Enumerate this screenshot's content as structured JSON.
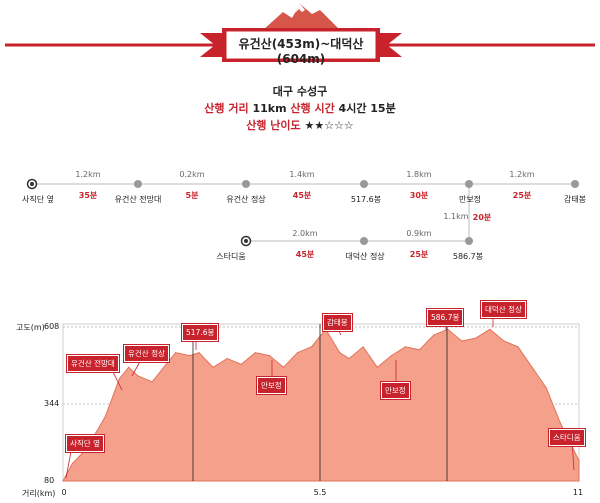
{
  "banner": {
    "title": "유건산(453m)~대덕산(604m)"
  },
  "info": {
    "region": "대구 수성구",
    "distance_label": "산행 거리",
    "distance_value": "11km",
    "time_label": "산행 시간",
    "time_value": "4시간 15분",
    "difficulty_label": "산행 난이도",
    "difficulty_stars": "★★☆☆☆"
  },
  "route": {
    "row1_stops": [
      "사직단 옆",
      "유건산 전망대",
      "유건산 정상",
      "517.6봉",
      "만보정",
      "감태봉"
    ],
    "row1_dists": [
      "1.2km",
      "0.2km",
      "1.4km",
      "1.8km",
      "1.2km"
    ],
    "row1_times": [
      "35분",
      "5분",
      "45분",
      "30분",
      "25분"
    ],
    "vertical_dist": "1.1km",
    "vertical_time": "20분",
    "row2_stops": [
      "스타디움",
      "대덕산 정상",
      "586.7봉"
    ],
    "row2_dists": [
      "2.0km",
      "0.9km"
    ],
    "row2_times": [
      "45분",
      "25분"
    ]
  },
  "profile": {
    "y_axis_title": "고도(m)",
    "x_axis_title": "거리(km)",
    "y_ticks": [
      "608",
      "344",
      "80"
    ],
    "x_ticks": [
      "0",
      "5.5",
      "11"
    ],
    "callouts": [
      "유건산 전망대",
      "유건산 정상",
      "517.6봉",
      "감태봉",
      "586.7봉",
      "대덕산 정상",
      "사직단 옆",
      "만보정",
      "만보정",
      "스타디움"
    ]
  },
  "colors": {
    "accent": "#c8232c",
    "area": "#f4a08a",
    "area_stroke": "#e2735a"
  },
  "chart_data": {
    "type": "area",
    "xlabel": "거리(km)",
    "ylabel": "고도(m)",
    "xlim": [
      0,
      11
    ],
    "ylim": [
      80,
      608
    ],
    "x": [
      0,
      0.2,
      0.5,
      0.9,
      1.2,
      1.4,
      1.6,
      1.9,
      2.2,
      2.4,
      2.7,
      2.9,
      3.2,
      3.5,
      3.8,
      4.1,
      4.4,
      4.7,
      5.0,
      5.3,
      5.6,
      5.9,
      6.1,
      6.4,
      6.7,
      7.0,
      7.3,
      7.6,
      7.9,
      8.2,
      8.5,
      8.8,
      9.1,
      9.4,
      9.7,
      10.0,
      10.3,
      10.6,
      11.0
    ],
    "y": [
      80,
      140,
      190,
      300,
      430,
      470,
      440,
      420,
      480,
      520,
      510,
      520,
      470,
      500,
      480,
      520,
      510,
      470,
      520,
      540,
      600,
      520,
      500,
      540,
      470,
      510,
      540,
      530,
      580,
      600,
      560,
      570,
      600,
      560,
      540,
      470,
      400,
      280,
      150
    ]
  }
}
